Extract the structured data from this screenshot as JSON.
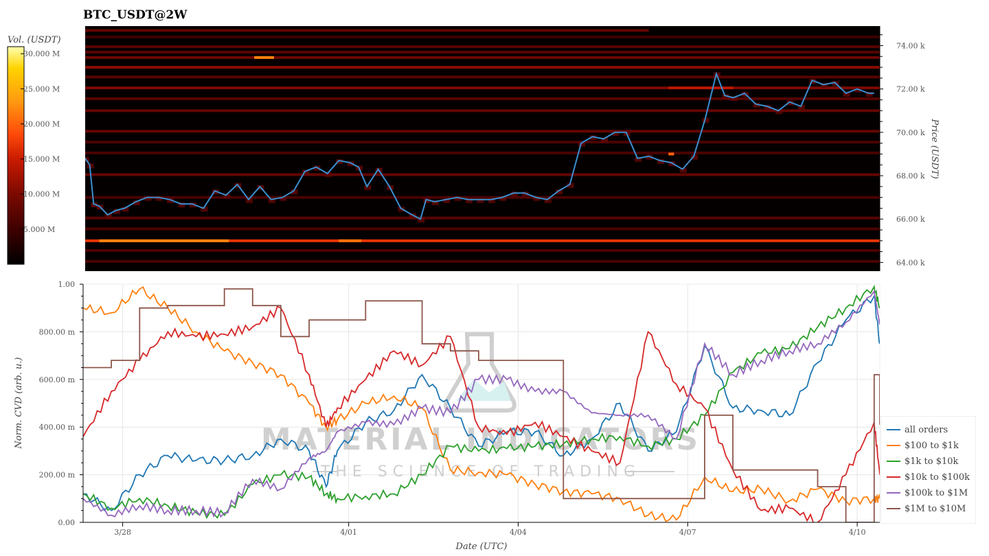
{
  "title": "BTC_USDT@2W",
  "colorbar": {
    "title": "Vol. (USDT)",
    "ticks": [
      "30.000 M",
      "25.000 M",
      "20.000 M",
      "15.000 M",
      "10.000 M",
      "5.000 M"
    ],
    "tick_values": [
      30,
      25,
      20,
      15,
      10,
      5
    ],
    "min": 0,
    "max": 31,
    "colors": [
      "#000000",
      "#3a0000",
      "#7a0a00",
      "#c81a00",
      "#ff4a0a",
      "#ff9a10",
      "#ffd300",
      "#ffffb0"
    ]
  },
  "watermark": {
    "brand": "MATERIAL INDICATORS",
    "tagline": "THE SCIENCE OF TRADING"
  },
  "legend": {
    "items": [
      {
        "label": "all orders",
        "color": "#1f77b4"
      },
      {
        "label": "$100 to $1k",
        "color": "#ff7f0e"
      },
      {
        "label": "$1k to $10k",
        "color": "#2ca02c"
      },
      {
        "label": "$10k to $100k",
        "color": "#d62728"
      },
      {
        "label": "$100k to $1M",
        "color": "#9467bd"
      },
      {
        "label": "$1M to $10M",
        "color": "#8c564b"
      }
    ]
  },
  "chart_data": [
    {
      "type": "heatmap",
      "title": "BTC_USDT@2W",
      "xlabel": "",
      "ylabel": "Price (USDT)",
      "y_ticks": [
        "64.00 k",
        "66.00 k",
        "68.00 k",
        "70.00 k",
        "72.00 k",
        "74.00 k"
      ],
      "y_tick_values": [
        64000,
        66000,
        68000,
        70000,
        72000,
        74000
      ],
      "ylim": [
        63600,
        74900
      ],
      "x_range_days": [
        0,
        14.1
      ],
      "colorbar_label": "Vol. (USDT)",
      "price_line_color": "#3a8fd0",
      "price_series": {
        "x_days": [
          0,
          0.08,
          0.15,
          0.25,
          0.4,
          0.55,
          0.7,
          0.9,
          1.1,
          1.3,
          1.5,
          1.7,
          1.9,
          2.1,
          2.3,
          2.5,
          2.7,
          2.9,
          3.1,
          3.3,
          3.5,
          3.7,
          3.9,
          4.1,
          4.3,
          4.5,
          4.7,
          4.85,
          5.0,
          5.2,
          5.4,
          5.6,
          5.8,
          5.95,
          6.05,
          6.2,
          6.4,
          6.6,
          6.8,
          7.0,
          7.2,
          7.4,
          7.6,
          7.8,
          8.0,
          8.2,
          8.4,
          8.6,
          8.8,
          9.0,
          9.2,
          9.4,
          9.6,
          9.8,
          10.0,
          10.2,
          10.4,
          10.6,
          10.8,
          11.0,
          11.2,
          11.35,
          11.5,
          11.7,
          11.9,
          12.1,
          12.3,
          12.5,
          12.7,
          12.9,
          13.1,
          13.3,
          13.5,
          13.7,
          13.9,
          14.0
        ],
        "y_price": [
          68800,
          68500,
          66700,
          66600,
          66200,
          66400,
          66500,
          66800,
          67000,
          67000,
          66900,
          66700,
          66700,
          66500,
          67300,
          67100,
          67600,
          66900,
          67500,
          66900,
          67000,
          67300,
          68200,
          68400,
          68100,
          68700,
          68600,
          68400,
          67500,
          68300,
          67500,
          66500,
          66200,
          66000,
          66900,
          66800,
          66900,
          67000,
          66900,
          66900,
          66900,
          67000,
          67200,
          67200,
          67000,
          66900,
          67300,
          67600,
          69500,
          69800,
          69700,
          70000,
          70000,
          68800,
          68900,
          68700,
          68600,
          68300,
          68900,
          70600,
          72700,
          71700,
          71600,
          71800,
          71300,
          71200,
          71000,
          71400,
          71200,
          72400,
          72200,
          72300,
          71800,
          72000,
          71800,
          71800
        ]
      },
      "liquidity_bands": [
        {
          "price": 74700,
          "vol_m": 8,
          "x_end": 10.0
        },
        {
          "price": 74400,
          "vol_m": 5
        },
        {
          "price": 73950,
          "vol_m": 7
        },
        {
          "price": 73700,
          "vol_m": 7
        },
        {
          "price": 73450,
          "vol_m": 9
        },
        {
          "price": 73000,
          "vol_m": 11
        },
        {
          "price": 72550,
          "vol_m": 7
        },
        {
          "price": 72050,
          "vol_m": 10
        },
        {
          "price": 71550,
          "vol_m": 7
        },
        {
          "price": 71000,
          "vol_m": 8
        },
        {
          "price": 70050,
          "vol_m": 8
        },
        {
          "price": 69550,
          "vol_m": 6
        },
        {
          "price": 69050,
          "vol_m": 6
        },
        {
          "price": 68050,
          "vol_m": 8
        },
        {
          "price": 67000,
          "vol_m": 6
        },
        {
          "price": 66050,
          "vol_m": 7
        },
        {
          "price": 65550,
          "vol_m": 6
        },
        {
          "price": 65000,
          "vol_m": 17
        },
        {
          "price": 64550,
          "vol_m": 6
        },
        {
          "price": 64050,
          "vol_m": 6
        }
      ],
      "hot_spots": [
        {
          "x_days": 3.0,
          "x_end": 3.35,
          "price": 73450,
          "vol_m": 22
        },
        {
          "x_days": 0.25,
          "x_end": 2.55,
          "price": 65000,
          "vol_m": 22
        },
        {
          "x_days": 4.5,
          "x_end": 4.9,
          "price": 65000,
          "vol_m": 21
        },
        {
          "x_days": 10.35,
          "x_end": 10.45,
          "price": 69000,
          "vol_m": 20
        },
        {
          "x_days": 10.35,
          "x_end": 11.5,
          "price": 72050,
          "vol_m": 14
        }
      ]
    },
    {
      "type": "line",
      "title": "",
      "xlabel": "Date (UTC)",
      "ylabel": "Norm. CVD (arb. u.)",
      "categories": [
        "3/28",
        "4/01",
        "4/04",
        "4/07",
        "4/10"
      ],
      "x_tick_days": [
        0.7,
        4.7,
        7.7,
        10.7,
        13.7
      ],
      "y_ticks": [
        "0.00",
        "200.00 m",
        "400.00 m",
        "600.00 m",
        "800.00 m",
        "1.00"
      ],
      "y_tick_values": [
        0,
        0.2,
        0.4,
        0.6,
        0.8,
        1.0
      ],
      "ylim": [
        0,
        1.0
      ],
      "xlim_days": [
        0,
        14.1
      ],
      "grid": true,
      "legend_position": "right-bottom",
      "x": [
        0,
        0.5,
        1.0,
        1.5,
        2.0,
        2.5,
        3.0,
        3.5,
        4.0,
        4.3,
        4.5,
        5.0,
        5.5,
        6.0,
        6.5,
        7.0,
        7.5,
        8.0,
        8.5,
        9.0,
        9.5,
        10.0,
        10.5,
        11.0,
        11.5,
        12.0,
        12.5,
        13.0,
        13.5,
        14.0,
        14.1
      ],
      "series": [
        {
          "name": "all orders",
          "values": [
            0.12,
            0.05,
            0.2,
            0.28,
            0.26,
            0.26,
            0.28,
            0.35,
            0.3,
            0.15,
            0.3,
            0.42,
            0.47,
            0.62,
            0.48,
            0.32,
            0.38,
            0.38,
            0.28,
            0.35,
            0.5,
            0.3,
            0.38,
            0.74,
            0.48,
            0.47,
            0.45,
            0.67,
            0.85,
            0.95,
            0.75
          ]
        },
        {
          "name": "$100 to $1k",
          "values": [
            0.9,
            0.88,
            0.98,
            0.9,
            0.8,
            0.72,
            0.67,
            0.62,
            0.5,
            0.4,
            0.43,
            0.5,
            0.53,
            0.48,
            0.22,
            0.21,
            0.2,
            0.16,
            0.13,
            0.12,
            0.1,
            0.03,
            0.01,
            0.19,
            0.13,
            0.14,
            0.09,
            0.14,
            0.09,
            0.1,
            0.1
          ]
        },
        {
          "name": "$1k to $10k",
          "values": [
            0.12,
            0.06,
            0.1,
            0.07,
            0.04,
            0.03,
            0.16,
            0.2,
            0.19,
            0.12,
            0.1,
            0.11,
            0.12,
            0.2,
            0.32,
            0.3,
            0.31,
            0.32,
            0.33,
            0.35,
            0.36,
            0.32,
            0.35,
            0.45,
            0.63,
            0.71,
            0.73,
            0.82,
            0.9,
            0.99,
            0.9
          ]
        },
        {
          "name": "$10k to $100k",
          "values": [
            0.36,
            0.55,
            0.68,
            0.8,
            0.78,
            0.79,
            0.82,
            0.9,
            0.62,
            0.4,
            0.48,
            0.6,
            0.72,
            0.66,
            0.78,
            0.4,
            0.37,
            0.42,
            0.36,
            0.3,
            0.25,
            0.8,
            0.58,
            0.48,
            0.22,
            0.05,
            0.06,
            0.0,
            0.2,
            0.42,
            0.2
          ]
        },
        {
          "name": "$100k to $1M",
          "values": [
            0.1,
            0.03,
            0.07,
            0.05,
            0.05,
            0.04,
            0.18,
            0.14,
            0.27,
            0.3,
            0.38,
            0.42,
            0.41,
            0.48,
            0.46,
            0.6,
            0.6,
            0.55,
            0.55,
            0.46,
            0.45,
            0.45,
            0.35,
            0.75,
            0.62,
            0.68,
            0.72,
            0.75,
            0.84,
            0.97,
            0.83
          ]
        },
        {
          "name": "$1M to $10M",
          "values": [
            0.65,
            0.68,
            0.9,
            0.91,
            0.91,
            0.98,
            0.91,
            0.78,
            0.85,
            0.85,
            0.85,
            0.93,
            0.93,
            0.75,
            0.72,
            0.68,
            0.68,
            0.68,
            0.1,
            0.1,
            0.1,
            0.1,
            0.1,
            0.45,
            0.22,
            0.22,
            0.22,
            0.15,
            0.0,
            0.62,
            0.41
          ]
        }
      ]
    }
  ]
}
